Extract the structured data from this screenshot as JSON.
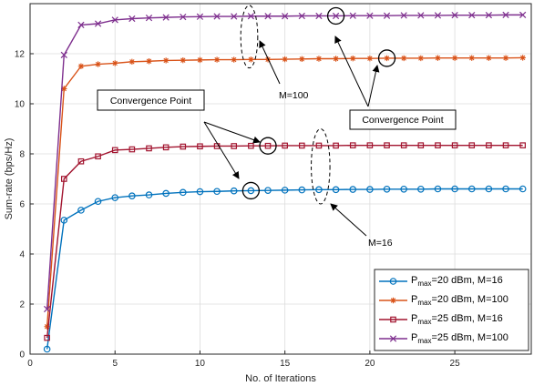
{
  "chart_data": {
    "type": "line",
    "xlabel": "No. of Iterations",
    "ylabel": "Sum-rate (bps/Hz)",
    "xlim": [
      0,
      29.5
    ],
    "ylim": [
      0,
      14
    ],
    "xticks": [
      0,
      5,
      10,
      15,
      20,
      25
    ],
    "yticks": [
      0,
      2,
      4,
      6,
      8,
      10,
      12
    ],
    "grid": true,
    "legend_position": "bottom-right",
    "x": [
      1,
      2,
      3,
      4,
      5,
      6,
      7,
      8,
      9,
      10,
      11,
      12,
      13,
      14,
      15,
      16,
      17,
      18,
      19,
      20,
      21,
      22,
      23,
      24,
      25,
      26,
      27,
      28,
      29
    ],
    "series": [
      {
        "name": "P_max=20 dBm, M=16",
        "legend_main": "P",
        "legend_sub": "max",
        "legend_rest": "=20 dBm, M=16",
        "color": "#0072BD",
        "marker": "circle",
        "values": [
          0.2,
          5.35,
          5.75,
          6.1,
          6.25,
          6.32,
          6.36,
          6.42,
          6.46,
          6.49,
          6.5,
          6.52,
          6.53,
          6.54,
          6.55,
          6.56,
          6.57,
          6.57,
          6.58,
          6.58,
          6.59,
          6.59,
          6.59,
          6.6,
          6.6,
          6.6,
          6.6,
          6.6,
          6.6
        ]
      },
      {
        "name": "P_max=20 dBm, M=100",
        "legend_main": "P",
        "legend_sub": "max",
        "legend_rest": "=20 dBm, M=100",
        "color": "#D95319",
        "marker": "star",
        "values": [
          1.1,
          10.6,
          11.5,
          11.58,
          11.62,
          11.68,
          11.7,
          11.73,
          11.74,
          11.75,
          11.76,
          11.76,
          11.77,
          11.77,
          11.78,
          11.79,
          11.8,
          11.8,
          11.81,
          11.81,
          11.82,
          11.82,
          11.82,
          11.83,
          11.83,
          11.83,
          11.83,
          11.83,
          11.84
        ]
      },
      {
        "name": "P_max=25 dBm, M=16",
        "legend_main": "P",
        "legend_sub": "max",
        "legend_rest": "=25 dBm, M=16",
        "color": "#A2142F",
        "marker": "square",
        "values": [
          0.65,
          7.0,
          7.7,
          7.9,
          8.15,
          8.18,
          8.22,
          8.26,
          8.29,
          8.3,
          8.31,
          8.31,
          8.32,
          8.32,
          8.33,
          8.33,
          8.33,
          8.33,
          8.34,
          8.34,
          8.34,
          8.34,
          8.34,
          8.34,
          8.34,
          8.34,
          8.34,
          8.34,
          8.34
        ]
      },
      {
        "name": "P_max=25 dBm, M=100",
        "legend_main": "P",
        "legend_sub": "max",
        "legend_rest": "=25 dBm, M=100",
        "color": "#7E2F8E",
        "marker": "x",
        "values": [
          1.8,
          11.95,
          13.15,
          13.2,
          13.35,
          13.4,
          13.43,
          13.45,
          13.47,
          13.48,
          13.49,
          13.49,
          13.5,
          13.5,
          13.5,
          13.51,
          13.51,
          13.51,
          13.52,
          13.52,
          13.52,
          13.53,
          13.53,
          13.53,
          13.54,
          13.54,
          13.54,
          13.55,
          13.55
        ]
      }
    ],
    "annotations": {
      "convergence_label": "Convergence Point",
      "m100_label": "M=100",
      "m16_label": "M=16",
      "convergence_circles": [
        {
          "x": 13,
          "y": 6.53
        },
        {
          "x": 14,
          "y": 8.32
        },
        {
          "x": 18,
          "y": 13.51
        },
        {
          "x": 21,
          "y": 11.82
        }
      ],
      "m100_ellipse": {
        "x": 12.9,
        "y": 12.68,
        "rx": 0.5,
        "ry": 1.25
      },
      "m16_ellipse": {
        "x": 17.1,
        "y": 7.5,
        "rx": 0.55,
        "ry": 1.5
      }
    }
  }
}
